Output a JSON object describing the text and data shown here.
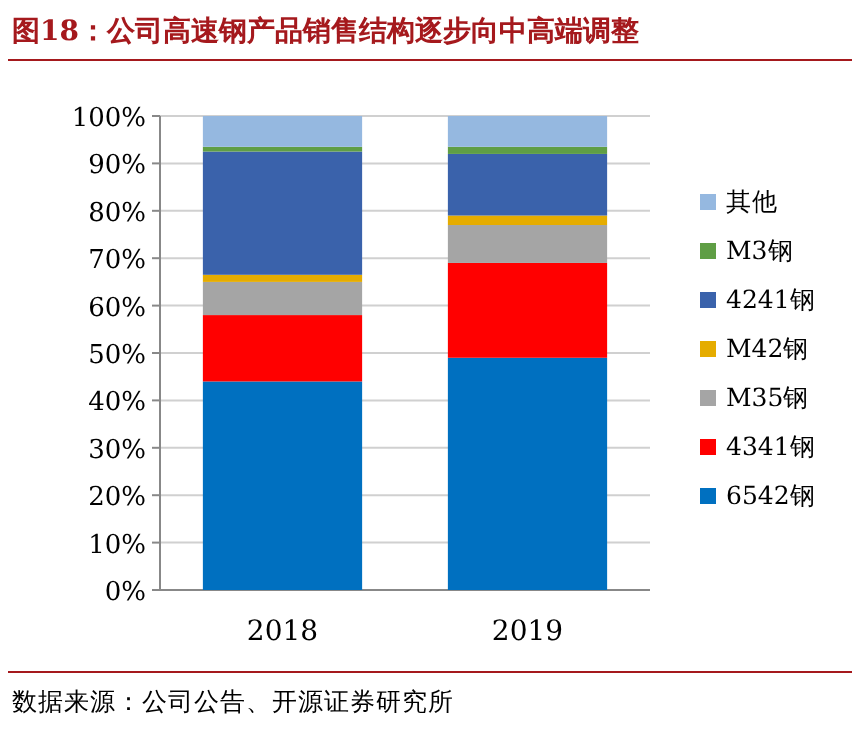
{
  "chart_data": {
    "type": "bar",
    "stacked": true,
    "title": "图18：公司高速钢产品销售结构逐步向中高端调整",
    "categories": [
      "2018",
      "2019"
    ],
    "series": [
      {
        "name": "6542钢",
        "color": "#0070c0",
        "values": [
          44,
          49
        ]
      },
      {
        "name": "4341钢",
        "color": "#ff0000",
        "values": [
          14,
          20
        ]
      },
      {
        "name": "M35钢",
        "color": "#a5a5a5",
        "values": [
          7,
          8
        ]
      },
      {
        "name": "M42钢",
        "color": "#e5ac00",
        "values": [
          1.5,
          2
        ]
      },
      {
        "name": "4241钢",
        "color": "#3a62ab",
        "values": [
          26,
          13
        ]
      },
      {
        "name": "M3钢",
        "color": "#5f9e45",
        "values": [
          1,
          1.5
        ]
      },
      {
        "name": "其他",
        "color": "#95b8e0",
        "values": [
          6.5,
          6.5
        ]
      }
    ],
    "ylim": [
      0,
      100
    ],
    "yticks": [
      {
        "value": 0,
        "label": "0%"
      },
      {
        "value": 10,
        "label": "10%"
      },
      {
        "value": 20,
        "label": "20%"
      },
      {
        "value": 30,
        "label": "30%"
      },
      {
        "value": 40,
        "label": "40%"
      },
      {
        "value": 50,
        "label": "50%"
      },
      {
        "value": 60,
        "label": "60%"
      },
      {
        "value": 70,
        "label": "70%"
      },
      {
        "value": 80,
        "label": "80%"
      },
      {
        "value": 90,
        "label": "90%"
      },
      {
        "value": 100,
        "label": "100%"
      }
    ],
    "grid": "y",
    "legend": "right",
    "annotations": [
      "数据来源：公司公告、开源证券研究所"
    ]
  }
}
